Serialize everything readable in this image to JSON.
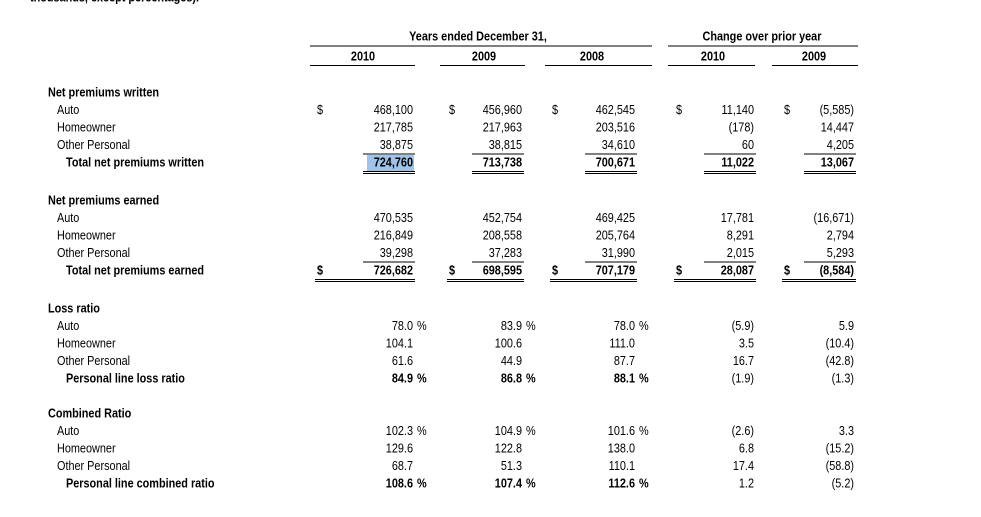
{
  "intro": "thousands, except percentages).",
  "header": {
    "group1": "Years ended December 31,",
    "group2": "Change over prior year",
    "columns": [
      "2010",
      "2009",
      "2008",
      "2010",
      "2009"
    ]
  },
  "sections": [
    {
      "title": "Net premiums written",
      "kind": "amount",
      "rows": [
        {
          "label": "Auto",
          "cells": [
            {
              "text": "468,100",
              "prefix": "$"
            },
            {
              "text": "456,960",
              "prefix": "$"
            },
            {
              "text": "462,545",
              "prefix": "$"
            },
            {
              "text": "11,140",
              "prefix": "$"
            },
            {
              "text": "(5,585)",
              "prefix": "$"
            }
          ]
        },
        {
          "label": "Homeowner",
          "cells": [
            {
              "text": "217,785"
            },
            {
              "text": "217,963"
            },
            {
              "text": "203,516"
            },
            {
              "text": "(178)"
            },
            {
              "text": "14,447"
            }
          ]
        },
        {
          "label": "Other Personal",
          "underline": "single",
          "cells": [
            {
              "text": "38,875"
            },
            {
              "text": "38,815"
            },
            {
              "text": "34,610"
            },
            {
              "text": "60"
            },
            {
              "text": "4,205"
            }
          ]
        },
        {
          "label": "Total net premiums written",
          "total": true,
          "underline": "double",
          "cells": [
            {
              "text": "724,760",
              "highlighted": true
            },
            {
              "text": "713,738"
            },
            {
              "text": "700,671"
            },
            {
              "text": "11,022"
            },
            {
              "text": "13,067"
            }
          ]
        }
      ]
    },
    {
      "title": "Net premiums earned",
      "kind": "amount",
      "rows": [
        {
          "label": "Auto",
          "cells": [
            {
              "text": "470,535"
            },
            {
              "text": "452,754"
            },
            {
              "text": "469,425"
            },
            {
              "text": "17,781"
            },
            {
              "text": "(16,671)"
            }
          ]
        },
        {
          "label": "Homeowner",
          "cells": [
            {
              "text": "216,849"
            },
            {
              "text": "208,558"
            },
            {
              "text": "205,764"
            },
            {
              "text": "8,291"
            },
            {
              "text": "2,794"
            }
          ]
        },
        {
          "label": "Other Personal",
          "underline": "single",
          "cells": [
            {
              "text": "39,298"
            },
            {
              "text": "37,283"
            },
            {
              "text": "31,990"
            },
            {
              "text": "2,015"
            },
            {
              "text": "5,293"
            }
          ]
        },
        {
          "label": "Total net premiums earned",
          "total": true,
          "underline": "double",
          "cells": [
            {
              "text": "726,682",
              "prefix": "$"
            },
            {
              "text": "698,595",
              "prefix": "$"
            },
            {
              "text": "707,179",
              "prefix": "$"
            },
            {
              "text": "28,087",
              "prefix": "$"
            },
            {
              "text": "(8,584)",
              "prefix": "$"
            }
          ]
        }
      ]
    },
    {
      "title": "Loss ratio",
      "kind": "ratio",
      "rows": [
        {
          "label": "Auto",
          "cells": [
            {
              "text": "78.0",
              "suffix": "%"
            },
            {
              "text": "83.9",
              "suffix": "%"
            },
            {
              "text": "78.0",
              "suffix": "%"
            },
            {
              "text": "(5.9)"
            },
            {
              "text": "5.9"
            }
          ]
        },
        {
          "label": "Homeowner",
          "cells": [
            {
              "text": "104.1"
            },
            {
              "text": "100.6"
            },
            {
              "text": "111.0"
            },
            {
              "text": "3.5"
            },
            {
              "text": "(10.4)"
            }
          ]
        },
        {
          "label": "Other Personal",
          "cells": [
            {
              "text": "61.6"
            },
            {
              "text": "44.9"
            },
            {
              "text": "87.7"
            },
            {
              "text": "16.7"
            },
            {
              "text": "(42.8)"
            }
          ]
        },
        {
          "label": "Personal line loss ratio",
          "total": true,
          "cells": [
            {
              "text": "84.9",
              "suffix": "%"
            },
            {
              "text": "86.8",
              "suffix": "%"
            },
            {
              "text": "88.1",
              "suffix": "%"
            },
            {
              "text": "(1.9)"
            },
            {
              "text": "(1.3)"
            }
          ]
        }
      ]
    },
    {
      "title": "Combined Ratio",
      "kind": "ratio",
      "rows": [
        {
          "label": "Auto",
          "cells": [
            {
              "text": "102.3",
              "suffix": "%"
            },
            {
              "text": "104.9",
              "suffix": "%"
            },
            {
              "text": "101.6",
              "suffix": "%"
            },
            {
              "text": "(2.6)"
            },
            {
              "text": "3.3"
            }
          ]
        },
        {
          "label": "Homeowner",
          "cells": [
            {
              "text": "129.6"
            },
            {
              "text": "122.8"
            },
            {
              "text": "138.0"
            },
            {
              "text": "6.8"
            },
            {
              "text": "(15.2)"
            }
          ]
        },
        {
          "label": "Other Personal",
          "cells": [
            {
              "text": "68.7"
            },
            {
              "text": "51.3"
            },
            {
              "text": "110.1"
            },
            {
              "text": "17.4"
            },
            {
              "text": "(58.8)"
            }
          ]
        },
        {
          "label": "Personal line combined ratio",
          "total": true,
          "cells": [
            {
              "text": "108.6",
              "suffix": "%"
            },
            {
              "text": "107.4",
              "suffix": "%"
            },
            {
              "text": "112.6",
              "suffix": "%"
            },
            {
              "text": "1.2"
            },
            {
              "text": "(5.2)"
            }
          ]
        }
      ]
    }
  ]
}
